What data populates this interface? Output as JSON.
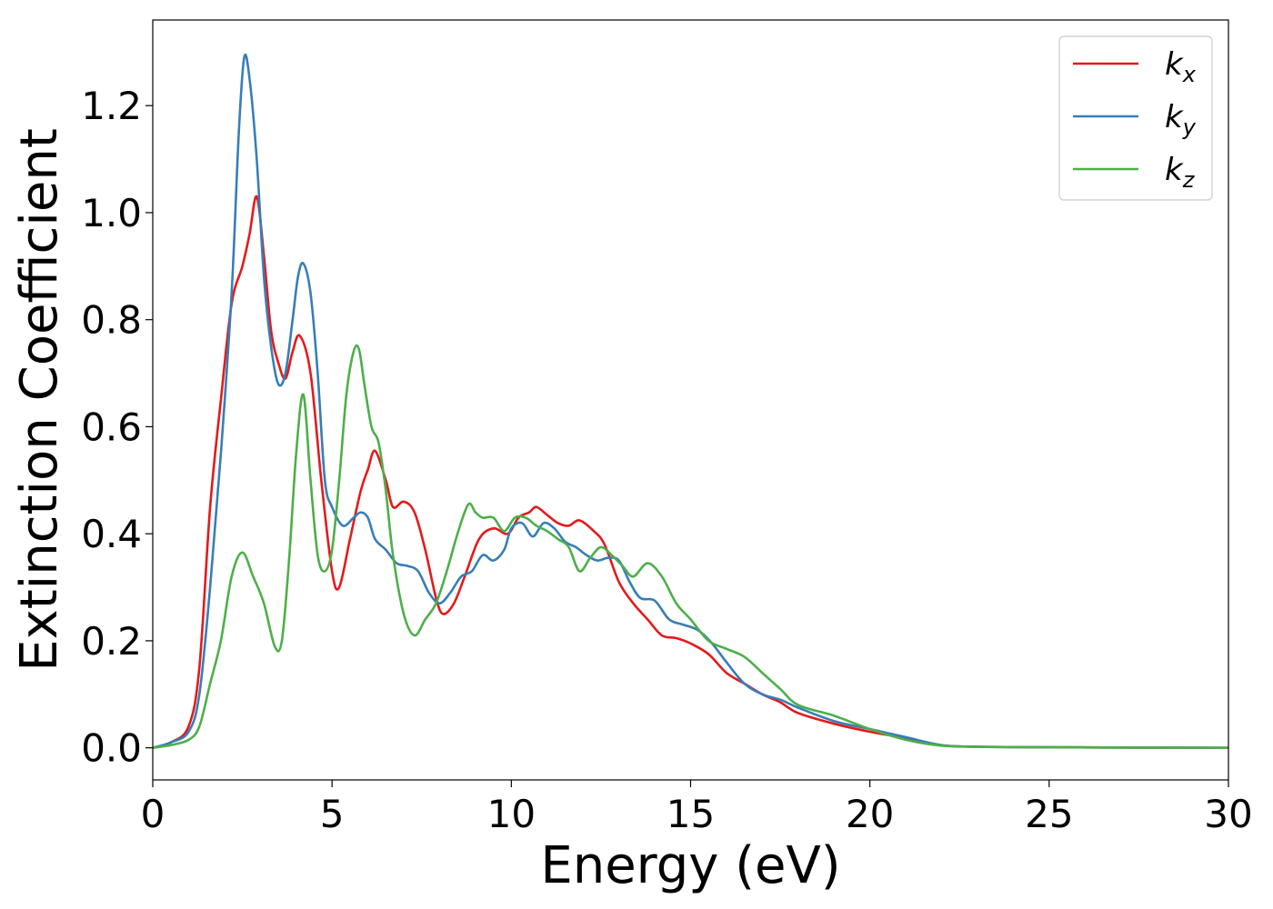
{
  "chart_data": {
    "type": "line",
    "title": "",
    "xlabel": "Energy (eV)",
    "ylabel": "Extinction Coefficient",
    "xlim": [
      0,
      30
    ],
    "ylim": [
      -0.06,
      1.36
    ],
    "xticks": [
      0,
      5,
      10,
      15,
      20,
      25,
      30
    ],
    "xtick_labels": [
      "0",
      "5",
      "10",
      "15",
      "20",
      "25",
      "30"
    ],
    "yticks": [
      0.0,
      0.2,
      0.4,
      0.6,
      0.8,
      1.0,
      1.2
    ],
    "ytick_labels": [
      "0.0",
      "0.2",
      "0.4",
      "0.6",
      "0.8",
      "1.0",
      "1.2"
    ],
    "grid": false,
    "legend_position": "top-right",
    "series": [
      {
        "name": "k",
        "subscript": "x",
        "color": "#e41a1c",
        "x": [
          0,
          0.5,
          1.0,
          1.3,
          1.6,
          1.9,
          2.2,
          2.5,
          2.7,
          2.9,
          3.1,
          3.3,
          3.5,
          3.7,
          3.9,
          4.1,
          4.4,
          4.7,
          5.0,
          5.2,
          5.5,
          5.8,
          6.0,
          6.2,
          6.5,
          6.7,
          7.0,
          7.3,
          7.6,
          7.9,
          8.1,
          8.4,
          8.7,
          9.1,
          9.5,
          9.9,
          10.2,
          10.5,
          10.7,
          11.0,
          11.3,
          11.6,
          11.9,
          12.3,
          12.6,
          13.0,
          13.4,
          13.8,
          14.2,
          14.6,
          15.0,
          15.5,
          16.0,
          16.5,
          17.0,
          17.5,
          18.0,
          19.0,
          20.0,
          21.0,
          22.0,
          23.0,
          25.0,
          30.0
        ],
        "y": [
          0.0,
          0.01,
          0.04,
          0.15,
          0.45,
          0.65,
          0.83,
          0.9,
          0.96,
          1.03,
          0.92,
          0.78,
          0.72,
          0.69,
          0.74,
          0.77,
          0.7,
          0.5,
          0.33,
          0.3,
          0.39,
          0.48,
          0.52,
          0.555,
          0.5,
          0.45,
          0.46,
          0.44,
          0.37,
          0.28,
          0.25,
          0.27,
          0.32,
          0.39,
          0.41,
          0.4,
          0.43,
          0.44,
          0.45,
          0.435,
          0.42,
          0.415,
          0.425,
          0.405,
          0.38,
          0.31,
          0.27,
          0.24,
          0.21,
          0.205,
          0.195,
          0.175,
          0.14,
          0.12,
          0.1,
          0.085,
          0.065,
          0.045,
          0.03,
          0.018,
          0.005,
          0.002,
          0.001,
          0.0
        ]
      },
      {
        "name": "k",
        "subscript": "y",
        "color": "#377eb8",
        "x": [
          0,
          0.5,
          1.0,
          1.3,
          1.6,
          1.9,
          2.2,
          2.4,
          2.55,
          2.7,
          2.9,
          3.1,
          3.3,
          3.5,
          3.7,
          3.9,
          4.05,
          4.2,
          4.4,
          4.6,
          4.8,
          5.0,
          5.3,
          5.6,
          5.8,
          6.0,
          6.2,
          6.5,
          6.8,
          7.1,
          7.4,
          7.7,
          8.0,
          8.3,
          8.6,
          8.9,
          9.2,
          9.5,
          9.8,
          10.0,
          10.3,
          10.6,
          10.9,
          11.2,
          11.5,
          11.8,
          12.1,
          12.4,
          12.7,
          13.0,
          13.3,
          13.6,
          14.0,
          14.4,
          14.8,
          15.2,
          15.6,
          16.0,
          16.5,
          17.0,
          17.5,
          18.0,
          19.0,
          20.0,
          21.0,
          22.0,
          23.0,
          25.0,
          30.0
        ],
        "y": [
          0.0,
          0.01,
          0.03,
          0.1,
          0.3,
          0.55,
          0.85,
          1.15,
          1.29,
          1.25,
          1.1,
          0.88,
          0.75,
          0.68,
          0.7,
          0.8,
          0.88,
          0.905,
          0.85,
          0.7,
          0.5,
          0.45,
          0.415,
          0.43,
          0.44,
          0.43,
          0.39,
          0.37,
          0.345,
          0.34,
          0.33,
          0.29,
          0.27,
          0.29,
          0.32,
          0.33,
          0.36,
          0.35,
          0.37,
          0.41,
          0.42,
          0.395,
          0.42,
          0.41,
          0.385,
          0.375,
          0.36,
          0.35,
          0.355,
          0.35,
          0.31,
          0.28,
          0.275,
          0.24,
          0.23,
          0.22,
          0.195,
          0.16,
          0.12,
          0.1,
          0.09,
          0.075,
          0.05,
          0.035,
          0.02,
          0.005,
          0.002,
          0.001,
          0.0
        ]
      },
      {
        "name": "k",
        "subscript": "z",
        "color": "#4daf4a",
        "x": [
          0,
          0.5,
          1.0,
          1.3,
          1.6,
          1.9,
          2.2,
          2.5,
          2.8,
          3.1,
          3.4,
          3.6,
          3.8,
          4.0,
          4.2,
          4.4,
          4.6,
          4.8,
          5.0,
          5.2,
          5.4,
          5.6,
          5.75,
          5.9,
          6.1,
          6.3,
          6.5,
          6.7,
          7.0,
          7.3,
          7.6,
          7.9,
          8.2,
          8.5,
          8.8,
          9.0,
          9.2,
          9.5,
          9.8,
          10.1,
          10.4,
          10.7,
          11.0,
          11.3,
          11.6,
          11.9,
          12.2,
          12.5,
          12.8,
          13.1,
          13.4,
          13.8,
          14.2,
          14.6,
          15.0,
          15.5,
          16.0,
          16.5,
          17.0,
          17.5,
          18.0,
          19.0,
          20.0,
          21.0,
          22.0,
          23.0,
          25.0,
          30.0
        ],
        "y": [
          0.0,
          0.005,
          0.015,
          0.04,
          0.12,
          0.2,
          0.32,
          0.365,
          0.32,
          0.27,
          0.19,
          0.2,
          0.35,
          0.55,
          0.66,
          0.5,
          0.36,
          0.33,
          0.37,
          0.5,
          0.66,
          0.74,
          0.745,
          0.68,
          0.6,
          0.57,
          0.48,
          0.36,
          0.25,
          0.21,
          0.24,
          0.27,
          0.33,
          0.4,
          0.455,
          0.44,
          0.43,
          0.43,
          0.405,
          0.43,
          0.43,
          0.415,
          0.405,
          0.39,
          0.375,
          0.33,
          0.355,
          0.375,
          0.36,
          0.34,
          0.32,
          0.345,
          0.32,
          0.27,
          0.24,
          0.2,
          0.185,
          0.17,
          0.14,
          0.11,
          0.08,
          0.06,
          0.035,
          0.015,
          0.004,
          0.002,
          0.001,
          0.0
        ]
      }
    ]
  }
}
